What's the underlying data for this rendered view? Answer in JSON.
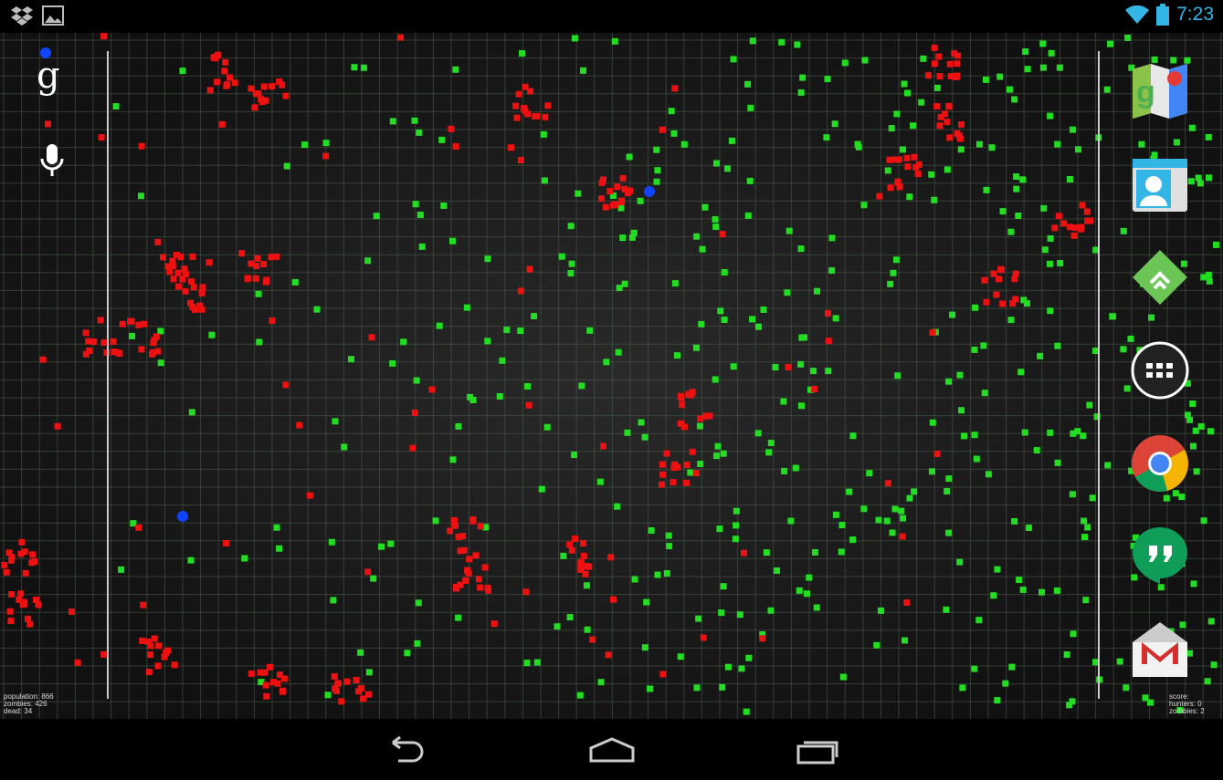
{
  "status_bar": {
    "left_icons": [
      "dropbox-icon",
      "gallery-icon"
    ],
    "right_icons": [
      "wifi-icon",
      "battery-icon"
    ],
    "time": "7:23",
    "accent": "#33b5e5"
  },
  "wallpaper": {
    "type": "zombie-simulation-live-wallpaper",
    "colors": {
      "humans": "#22dd22",
      "zombies": "#ee1111",
      "hunters": "#1144ff",
      "grid": "#4a5a4a"
    },
    "stats_left": [
      "population: 866",
      "zombies: 426",
      "dead: 34"
    ],
    "stats_right": [
      "score:",
      "hunters: 0",
      "zombies: 2"
    ]
  },
  "search": {
    "google_icon": "google-g-icon",
    "voice_icon": "microphone-icon"
  },
  "dock": [
    {
      "name": "Maps",
      "icon": "maps-icon"
    },
    {
      "name": "People",
      "icon": "contacts-icon"
    },
    {
      "name": "Feedly",
      "icon": "feedly-icon"
    },
    {
      "name": "All apps",
      "icon": "app-drawer-icon"
    },
    {
      "name": "Chrome",
      "icon": "chrome-icon"
    },
    {
      "name": "Hangouts",
      "icon": "hangouts-icon"
    },
    {
      "name": "Gmail",
      "icon": "gmail-icon"
    }
  ],
  "nav": [
    "back-icon",
    "home-icon",
    "recents-icon"
  ]
}
